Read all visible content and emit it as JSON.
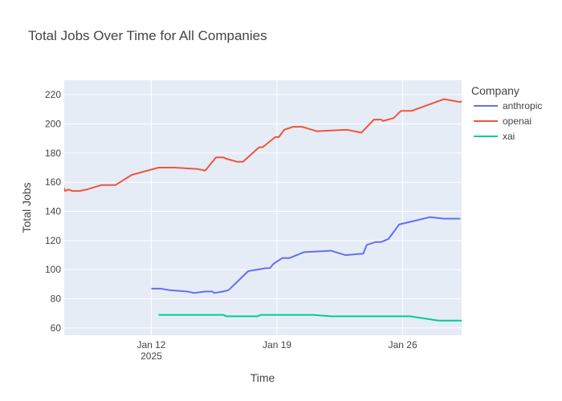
{
  "chart_data": {
    "type": "line",
    "title": "Total Jobs Over Time for All Companies",
    "xlabel": "Time",
    "ylabel": "Total Jobs",
    "ylim": [
      55,
      230
    ],
    "xlim": [
      "2025-01-07",
      "2025-01-29"
    ],
    "grid": true,
    "legend": {
      "title": "Company",
      "position": "right"
    },
    "x_ticks": [
      {
        "value": "2025-01-12",
        "label": "Jan 12",
        "sublabel": "2025"
      },
      {
        "value": "2025-01-19",
        "label": "Jan 19",
        "sublabel": ""
      },
      {
        "value": "2025-01-26",
        "label": "Jan 26",
        "sublabel": ""
      }
    ],
    "y_ticks": [
      60,
      80,
      100,
      120,
      140,
      160,
      180,
      200,
      220
    ],
    "series": [
      {
        "name": "anthropic",
        "color": "#636efa",
        "points": [
          [
            "2025-01-12",
            87
          ],
          [
            "2025-01-12.5",
            87
          ],
          [
            "2025-01-13",
            86
          ],
          [
            "2025-01-14",
            85
          ],
          [
            "2025-01-14.4",
            84
          ],
          [
            "2025-01-15",
            85
          ],
          [
            "2025-01-15.4",
            85
          ],
          [
            "2025-01-15.5",
            84
          ],
          [
            "2025-01-16",
            85
          ],
          [
            "2025-01-16.3",
            86
          ],
          [
            "2025-01-17.4",
            99
          ],
          [
            "2025-01-18.4",
            101
          ],
          [
            "2025-01-18.6",
            101
          ],
          [
            "2025-01-18.8",
            104
          ],
          [
            "2025-01-19.3",
            108
          ],
          [
            "2025-01-19.7",
            108
          ],
          [
            "2025-01-20.5",
            112
          ],
          [
            "2025-01-22",
            113
          ],
          [
            "2025-01-22.8",
            110
          ],
          [
            "2025-01-23.8",
            111
          ],
          [
            "2025-01-24",
            117
          ],
          [
            "2025-01-24.5",
            119
          ],
          [
            "2025-01-24.8",
            119
          ],
          [
            "2025-01-25.2",
            121
          ],
          [
            "2025-01-25.8",
            131
          ],
          [
            "2025-01-27.5",
            136
          ],
          [
            "2025-01-28.3",
            135
          ],
          [
            "2025-01-29.2",
            135
          ]
        ]
      },
      {
        "name": "openai",
        "color": "#ef553b",
        "points": [
          [
            "2025-01-07",
            155
          ],
          [
            "2025-01-07.1",
            157
          ],
          [
            "2025-01-07.2",
            154
          ],
          [
            "2025-01-07.4",
            155
          ],
          [
            "2025-01-07.6",
            154
          ],
          [
            "2025-01-08",
            154
          ],
          [
            "2025-01-08.4",
            155
          ],
          [
            "2025-01-09.2",
            158
          ],
          [
            "2025-01-10",
            158
          ],
          [
            "2025-01-10.9",
            165
          ],
          [
            "2025-01-12.4",
            170
          ],
          [
            "2025-01-13.3",
            170
          ],
          [
            "2025-01-14.6",
            169
          ],
          [
            "2025-01-15",
            168
          ],
          [
            "2025-01-15.6",
            177
          ],
          [
            "2025-01-16",
            177
          ],
          [
            "2025-01-16.2",
            176
          ],
          [
            "2025-01-16.8",
            174
          ],
          [
            "2025-01-17.1",
            174
          ],
          [
            "2025-01-18",
            184
          ],
          [
            "2025-01-18.2",
            184
          ],
          [
            "2025-01-18.9",
            191
          ],
          [
            "2025-01-19.1",
            191
          ],
          [
            "2025-01-19.4",
            196
          ],
          [
            "2025-01-19.9",
            198
          ],
          [
            "2025-01-20.4",
            198
          ],
          [
            "2025-01-21.2",
            195
          ],
          [
            "2025-01-22.9",
            196
          ],
          [
            "2025-01-23.7",
            194
          ],
          [
            "2025-01-24.4",
            203
          ],
          [
            "2025-01-24.8",
            203
          ],
          [
            "2025-01-24.9",
            202
          ],
          [
            "2025-01-25.5",
            204
          ],
          [
            "2025-01-25.9",
            209
          ],
          [
            "2025-01-26.5",
            209
          ],
          [
            "2025-01-28.3",
            217
          ],
          [
            "2025-01-29.2",
            215
          ],
          [
            "2025-01-30.1",
            221
          ]
        ]
      },
      {
        "name": "xai",
        "color": "#00cc96",
        "points": [
          [
            "2025-01-12.4",
            69
          ],
          [
            "2025-01-16",
            69
          ],
          [
            "2025-01-16.2",
            68
          ],
          [
            "2025-01-17.9",
            68
          ],
          [
            "2025-01-18.1",
            69
          ],
          [
            "2025-01-21",
            69
          ],
          [
            "2025-01-22",
            68
          ],
          [
            "2025-01-26.4",
            68
          ],
          [
            "2025-01-28",
            65
          ],
          [
            "2025-01-29.2",
            65
          ],
          [
            "2025-01-30.1",
            64
          ]
        ]
      }
    ]
  }
}
